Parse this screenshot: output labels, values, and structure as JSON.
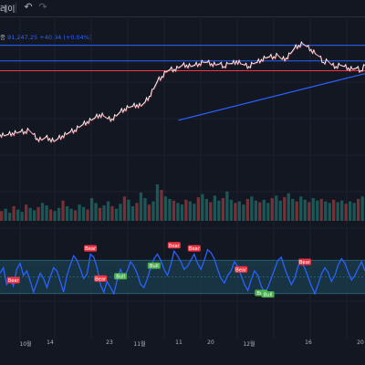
{
  "toolbar": {
    "partial_text": "레이",
    "undo_icon": "undo-arrow-icon",
    "redo_icon": "redo-arrow-icon"
  },
  "legend": {
    "symbol_fragment": "종",
    "value_text": "91,247.25",
    "change_text": "+40.94 (+0.04%)"
  },
  "chart_data": [
    {
      "type": "line",
      "panel": "price",
      "xlabel": "",
      "ylabel": "",
      "x_ticks": [
        "10월",
        "14",
        "23",
        "11월",
        "11",
        "20",
        "12월",
        "16",
        "20"
      ],
      "grid": true,
      "y_range": [
        0,
        100
      ],
      "series": [
        {
          "color": "#ffffff",
          "values": [
            34,
            33,
            34,
            35,
            35,
            36,
            36,
            37,
            34,
            31,
            30,
            32,
            31,
            29,
            31,
            33,
            34,
            36,
            37,
            39,
            41,
            43,
            44,
            46,
            48,
            47,
            45,
            45,
            47,
            50,
            52,
            53,
            54,
            55,
            54,
            57,
            61,
            66,
            72,
            75,
            78,
            80,
            80,
            81,
            83,
            83,
            82,
            83,
            84,
            85,
            85,
            84,
            83,
            84,
            82,
            84,
            84,
            86,
            84,
            83,
            82,
            84,
            85,
            87,
            88,
            89,
            89,
            90,
            87,
            88,
            91,
            95,
            97,
            98,
            96,
            94,
            91,
            89,
            85,
            86,
            83,
            82,
            83,
            82,
            81,
            80,
            81,
            79,
            83
          ]
        }
      ],
      "horizontal_lines": [
        {
          "level": 97,
          "color": "#2962ff"
        },
        {
          "level": 86,
          "color": "#2962ff"
        },
        {
          "level": 79,
          "color": "#f23645"
        }
      ],
      "trendline": {
        "from": [
          43,
          44
        ],
        "to": [
          88,
          77
        ],
        "color": "#2962ff"
      }
    },
    {
      "type": "bar",
      "panel": "volume",
      "colors": {
        "up": "#26a69a",
        "down": "#ef5350"
      },
      "values": [
        12,
        15,
        10,
        18,
        14,
        11,
        20,
        16,
        13,
        17,
        22,
        19,
        14,
        12,
        16,
        25,
        18,
        15,
        13,
        20,
        17,
        14,
        28,
        22,
        16,
        19,
        24,
        18,
        15,
        21,
        30,
        26,
        18,
        22,
        35,
        28,
        20,
        24,
        45,
        38,
        30,
        27,
        25,
        22,
        20,
        26,
        24,
        21,
        29,
        33,
        27,
        23,
        31,
        25,
        28,
        36,
        26,
        22,
        24,
        20,
        27,
        30,
        25,
        23,
        26,
        22,
        28,
        31,
        25,
        29,
        34,
        27,
        24,
        30,
        26,
        23,
        28,
        25,
        27,
        24,
        22,
        26,
        23,
        25,
        21,
        24,
        22,
        27,
        30
      ]
    },
    {
      "type": "line",
      "panel": "oscillator",
      "band": {
        "upper": 72,
        "middle": 50,
        "lower": 28
      },
      "y_range": [
        0,
        100
      ],
      "series": [
        {
          "color": "#2962ff",
          "values": [
            55,
            62,
            40,
            48,
            38,
            60,
            68,
            52,
            58,
            45,
            30,
            42,
            55,
            48,
            36,
            50,
            62,
            58,
            44,
            30,
            52,
            66,
            78,
            72,
            60,
            48,
            54,
            80,
            76,
            62,
            40,
            30,
            44,
            36,
            28,
            46,
            60,
            50,
            58,
            70,
            64,
            54,
            40,
            36,
            48,
            62,
            74,
            80,
            72,
            60,
            52,
            66,
            84,
            78,
            70,
            60,
            64,
            72,
            80,
            68,
            60,
            72,
            86,
            82,
            74,
            60,
            48,
            42,
            52,
            58,
            70,
            64,
            52,
            40,
            32,
            46,
            58,
            52,
            38,
            30,
            36,
            48,
            60,
            72,
            76,
            62,
            50,
            40,
            48,
            64,
            70,
            62,
            50,
            38,
            28,
            40,
            54,
            62,
            56,
            44,
            52,
            66,
            74,
            68,
            56,
            46,
            52,
            62,
            70,
            58
          ]
        }
      ],
      "signals": [
        {
          "label": "Bear",
          "index": 4
        },
        {
          "label": "Bear",
          "index": 27
        },
        {
          "label": "Bear",
          "index": 30
        },
        {
          "label": "Bull",
          "index": 36
        },
        {
          "label": "Bull",
          "index": 46
        },
        {
          "label": "Bear",
          "index": 52
        },
        {
          "label": "Bear",
          "index": 58
        },
        {
          "label": "Bear",
          "index": 72
        },
        {
          "label": "Bull",
          "index": 78
        },
        {
          "label": "Bull",
          "index": 80
        },
        {
          "label": "Bear",
          "index": 91
        }
      ],
      "signal_colors": {
        "Bear": "#f23645",
        "Bull": "#4caf50"
      }
    }
  ]
}
